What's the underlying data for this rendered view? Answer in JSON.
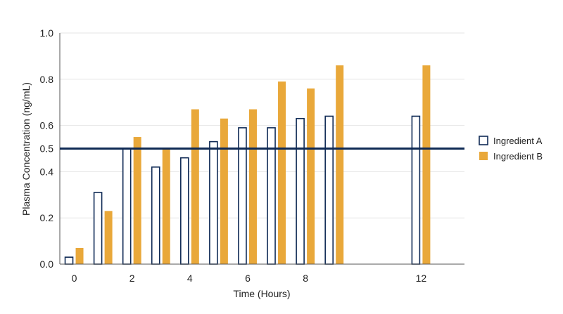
{
  "chart_data": {
    "type": "bar",
    "xlabel": "Time (Hours)",
    "ylabel": "Plasma Concentration (ng/mL)",
    "ylim": [
      0,
      1.0
    ],
    "xlim": [
      -0.5,
      13.5
    ],
    "x_ticks": [
      "0",
      "2",
      "4",
      "6",
      "8",
      "12"
    ],
    "y_ticks": [
      "0.0",
      "0.2",
      "0.4",
      "0.5",
      "0.6",
      "0.8",
      "1.0"
    ],
    "y_tick_values": [
      0,
      0.2,
      0.4,
      0.5,
      0.6,
      0.8,
      1.0
    ],
    "grid": true,
    "legend_position": "right",
    "reference_line": {
      "y": 0.5,
      "color": "#0f2a55"
    },
    "x": [
      0,
      1,
      2,
      3,
      4,
      5,
      6,
      7,
      8,
      9,
      12
    ],
    "series": [
      {
        "name": "Ingredient A",
        "style": "outline",
        "color": "#0f2a55",
        "values": [
          0.03,
          0.31,
          0.5,
          0.42,
          0.46,
          0.53,
          0.59,
          0.59,
          0.63,
          0.64,
          0.64
        ]
      },
      {
        "name": "Ingredient B",
        "style": "filled",
        "color": "#e9a83a",
        "values": [
          0.07,
          0.23,
          0.55,
          0.5,
          0.67,
          0.63,
          0.67,
          0.79,
          0.76,
          0.86,
          0.86
        ]
      }
    ]
  }
}
